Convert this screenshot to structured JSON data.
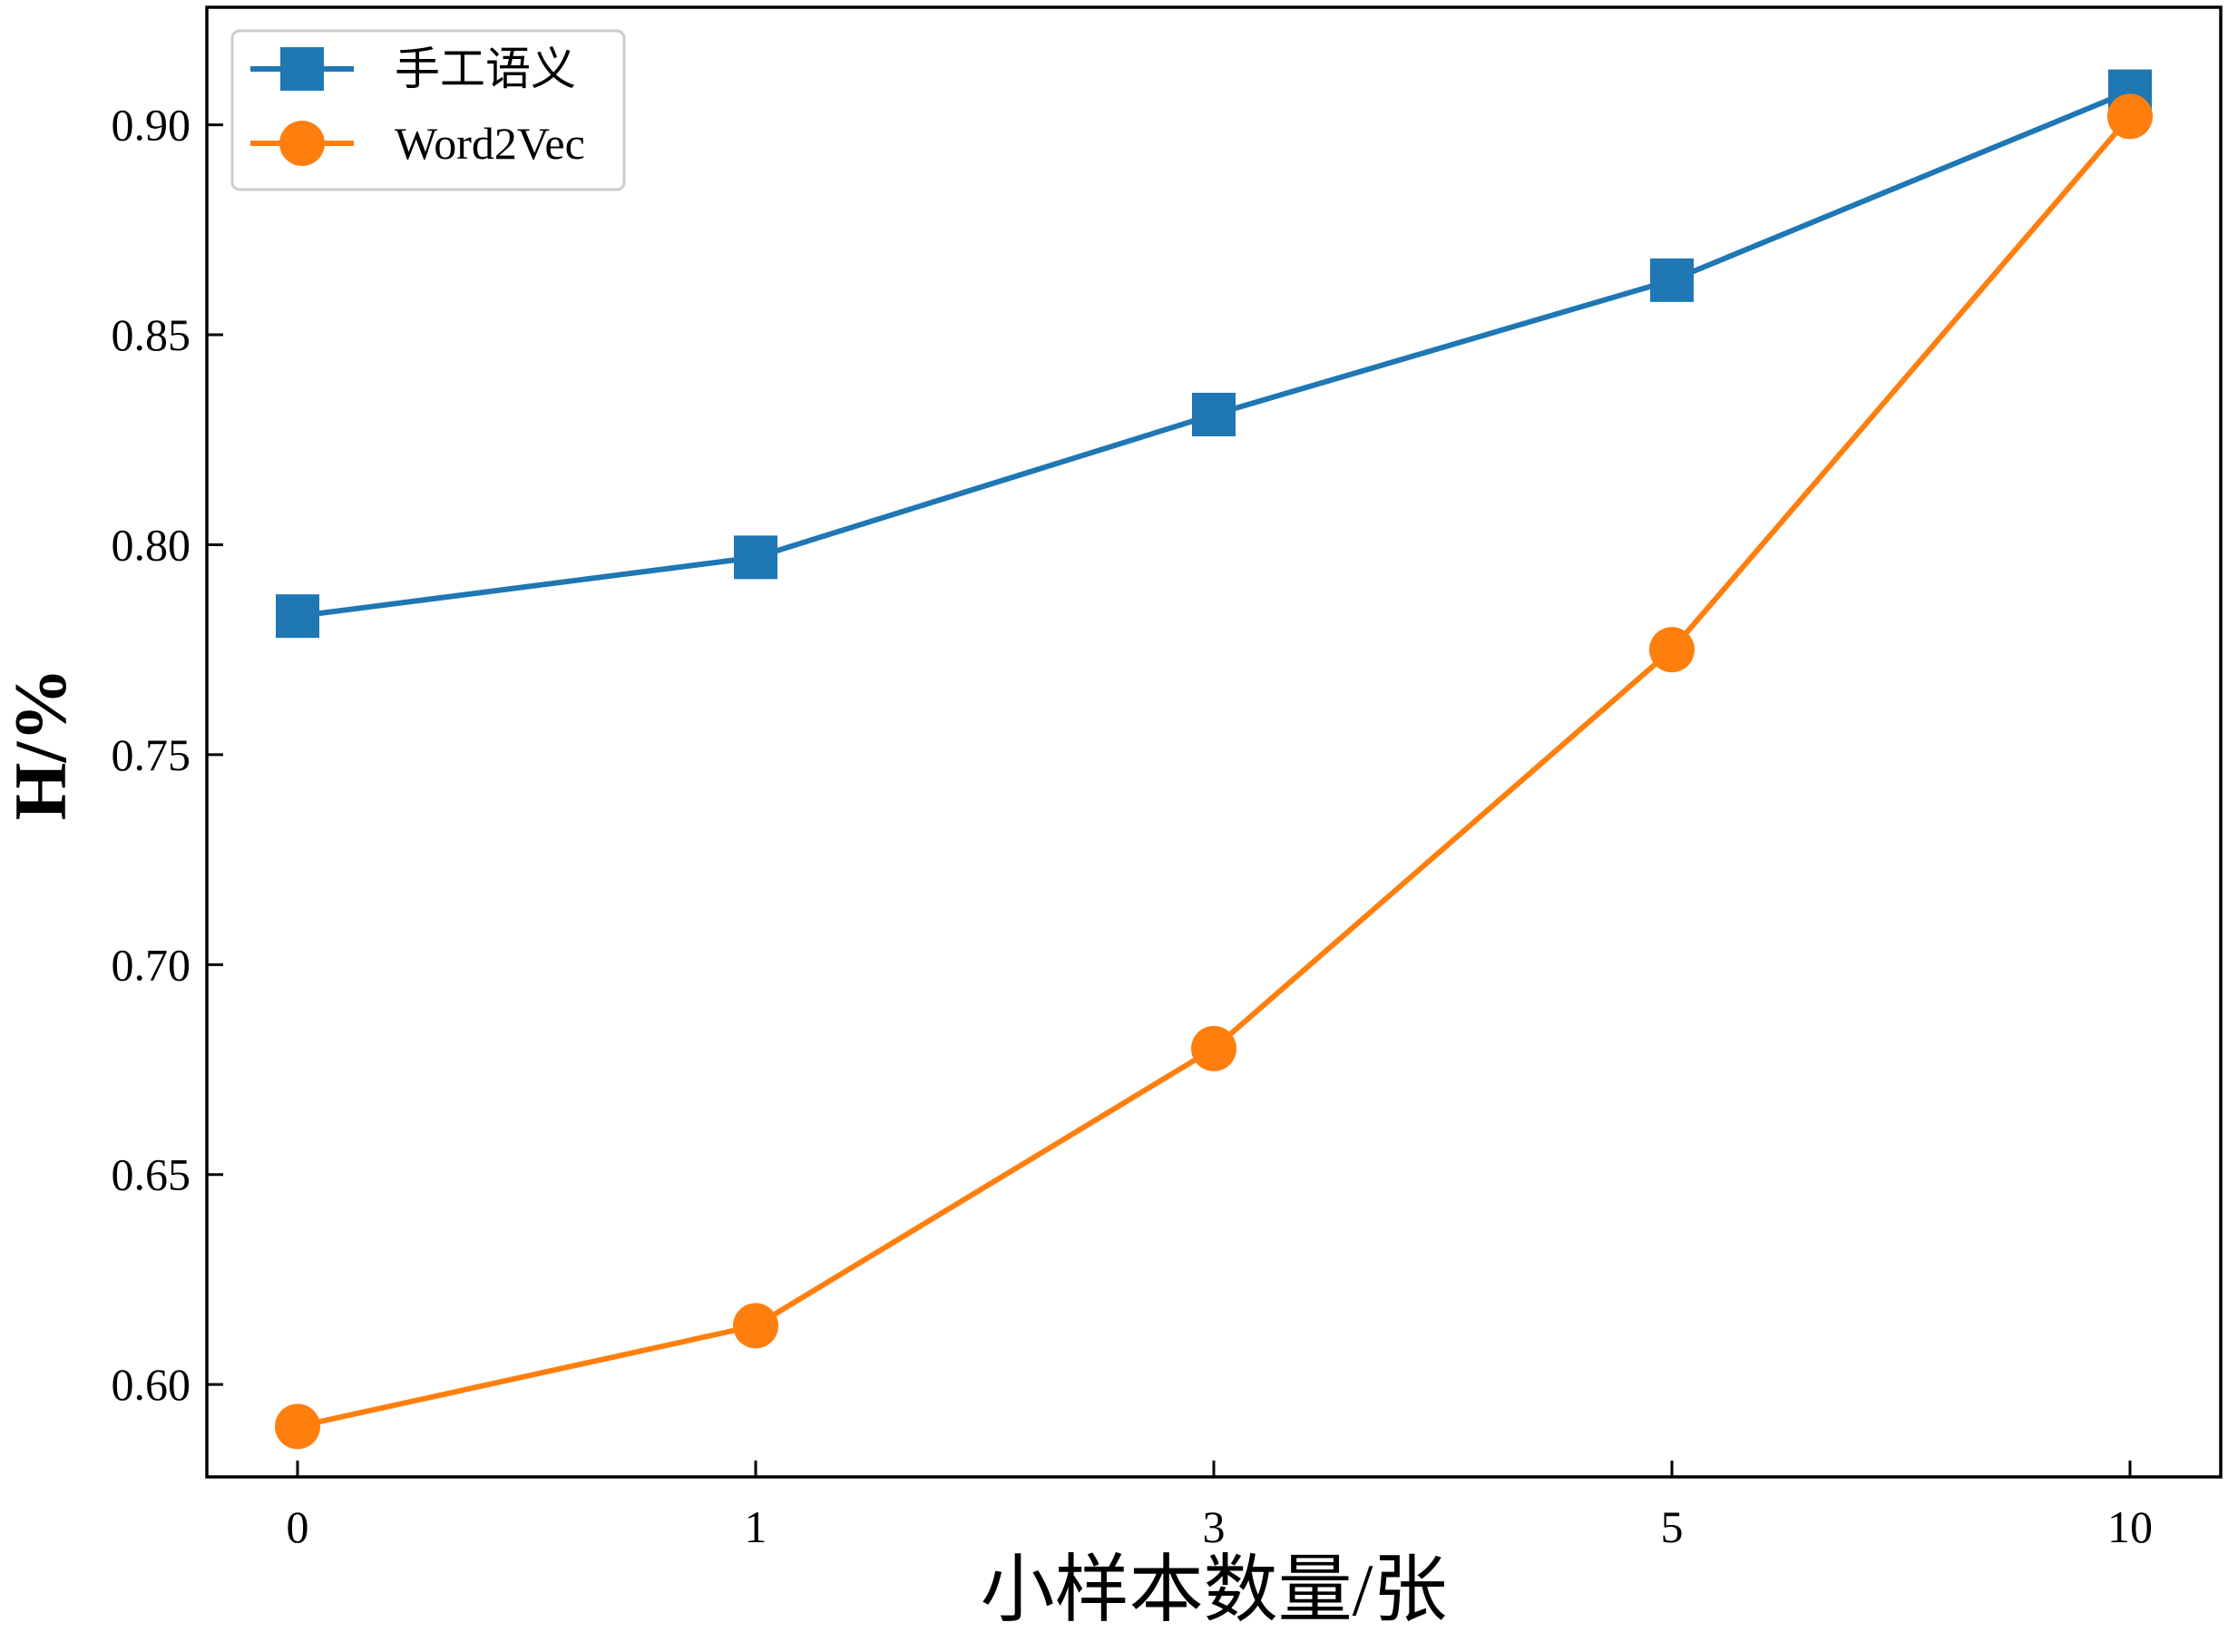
{
  "chart_data": {
    "type": "line",
    "categories": [
      "0",
      "1",
      "3",
      "5",
      "10"
    ],
    "series": [
      {
        "name": "手工语义",
        "values": [
          0.783,
          0.797,
          0.831,
          0.863,
          0.908
        ],
        "color": "#1f77b4",
        "marker": "square"
      },
      {
        "name": "Word2Vec",
        "values": [
          0.59,
          0.614,
          0.68,
          0.775,
          0.902
        ],
        "color": "#ff7f0e",
        "marker": "circle"
      }
    ],
    "xlabel": "小样本数量/张",
    "ylabel": "H/%",
    "ylim": [
      0.578,
      0.928
    ],
    "yticks": [
      "0.60",
      "0.65",
      "0.70",
      "0.75",
      "0.80",
      "0.85",
      "0.90"
    ],
    "tick_direction": "in",
    "grid": false,
    "legend_position": "top-left"
  }
}
